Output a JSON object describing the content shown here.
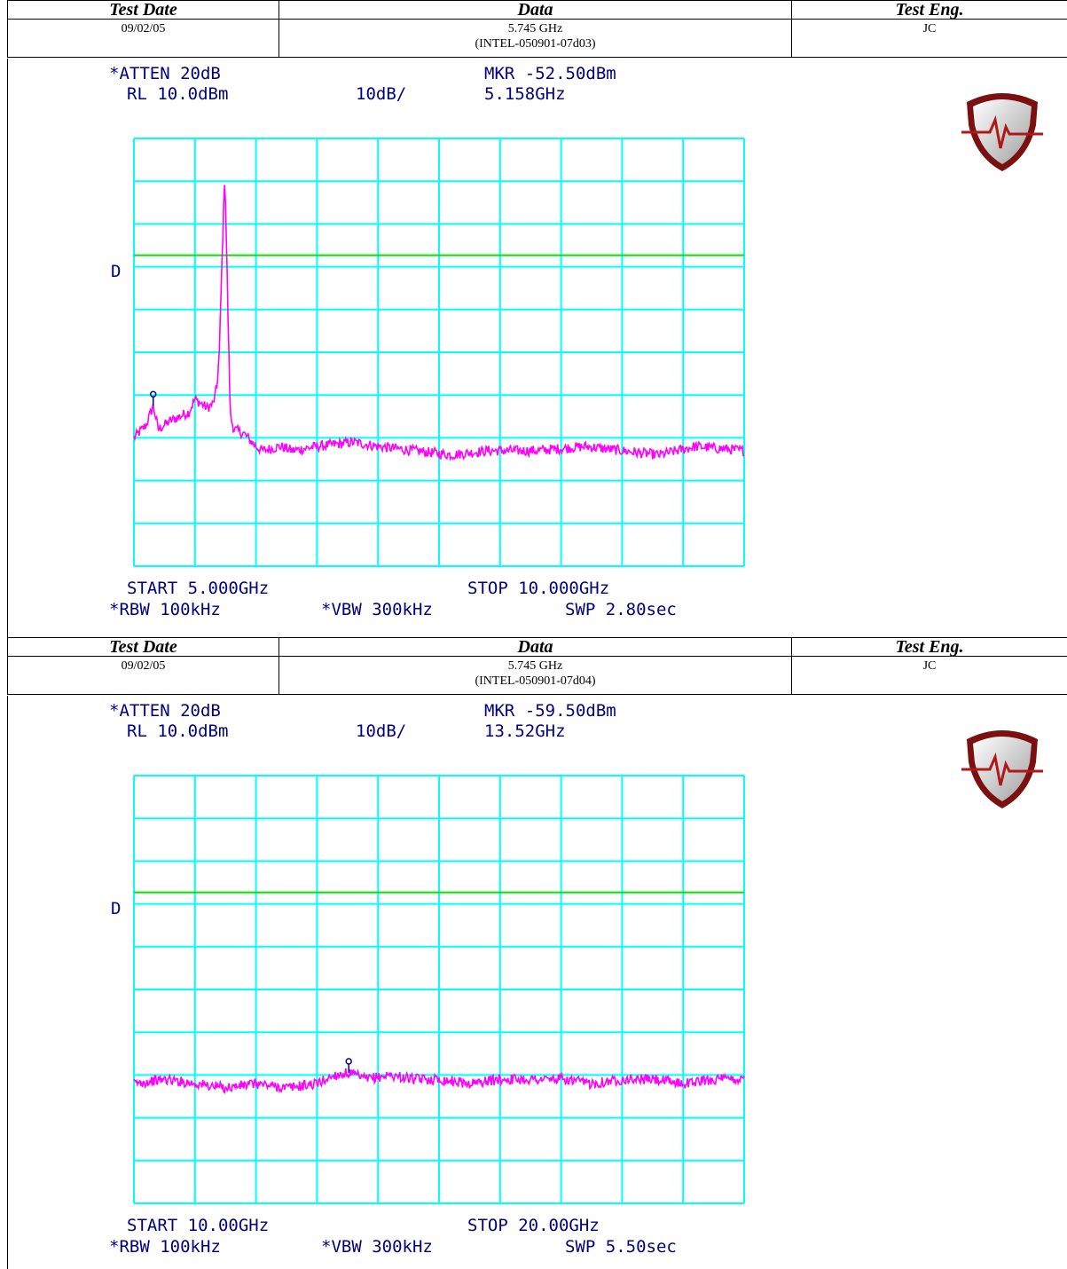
{
  "blocks": [
    {
      "header": {
        "col1": "Test Date",
        "col2": "Data",
        "col3": "Test Eng.",
        "date": "09/02/05",
        "data_line1": "5.745 GHz",
        "data_line2": "(INTEL-050901-07d03)",
        "engineer": "JC"
      },
      "analyzer": {
        "atten": "*ATTEN 20dB",
        "rl": "RL 10.0dBm",
        "scale": "10dB/",
        "mkr": "MKR -52.50dBm",
        "mkr_freq": "5.158GHz",
        "d_label": "D",
        "start": "START 5.000GHz",
        "stop": "STOP 10.000GHz",
        "rbw": "*RBW 100kHz",
        "vbw": "*VBW 300kHz",
        "swp": "SWP 2.80sec"
      },
      "chart_data": {
        "type": "line",
        "title": "",
        "xlabel": "",
        "ylabel": "",
        "x_unit": "GHz",
        "y_unit": "dBm",
        "xlim": [
          5.0,
          10.0
        ],
        "ylim": [
          -90,
          10
        ],
        "grid": true,
        "display_line_dbm": -17.3,
        "marker": {
          "x": 5.158,
          "y": -52.5
        },
        "x": [
          5.0,
          5.1,
          5.158,
          5.2,
          5.3,
          5.45,
          5.5,
          5.6,
          5.65,
          5.68,
          5.7,
          5.72,
          5.745,
          5.77,
          5.79,
          5.82,
          5.9,
          6.0,
          6.05,
          6.2,
          6.3,
          6.5,
          6.8,
          7.0,
          7.3,
          7.6,
          7.9,
          8.3,
          8.7,
          9.0,
          9.3,
          9.6,
          10.0
        ],
        "y": [
          -60,
          -57,
          -52.5,
          -58,
          -56,
          -54,
          -51,
          -53,
          -52,
          -48,
          -40,
          -20,
          2,
          -30,
          -55,
          -58,
          -59,
          -62,
          -63,
          -62,
          -63,
          -62,
          -61,
          -62,
          -63,
          -64,
          -63,
          -63,
          -62,
          -63,
          -64,
          -62,
          -63
        ],
        "series": [
          {
            "color": "#ff00ff"
          }
        ]
      }
    },
    {
      "header": {
        "col1": "Test Date",
        "col2": "Data",
        "col3": "Test Eng.",
        "date": "09/02/05",
        "data_line1": "5.745 GHz",
        "data_line2": "(INTEL-050901-07d04)",
        "engineer": "JC"
      },
      "analyzer": {
        "atten": "*ATTEN 20dB",
        "rl": "RL 10.0dBm",
        "scale": "10dB/",
        "mkr": "MKR -59.50dBm",
        "mkr_freq": "13.52GHz",
        "d_label": "D",
        "start": "START 10.00GHz",
        "stop": "STOP 20.00GHz",
        "rbw": "*RBW 100kHz",
        "vbw": "*VBW 300kHz",
        "swp": "SWP 5.50sec"
      },
      "chart_data": {
        "type": "line",
        "title": "",
        "xlabel": "",
        "ylabel": "",
        "x_unit": "GHz",
        "y_unit": "dBm",
        "xlim": [
          10.0,
          20.0
        ],
        "ylim": [
          -90,
          10
        ],
        "grid": true,
        "display_line_dbm": -17.3,
        "marker": {
          "x": 13.52,
          "y": -59.5
        },
        "x": [
          10.0,
          10.5,
          11.0,
          11.5,
          12.0,
          12.5,
          13.0,
          13.3,
          13.52,
          13.8,
          14.2,
          14.6,
          15.0,
          15.5,
          16.0,
          16.5,
          17.0,
          17.5,
          18.0,
          18.5,
          19.0,
          19.5,
          20.0
        ],
        "y": [
          -62,
          -61,
          -62,
          -63,
          -62,
          -63,
          -62,
          -60,
          -59.5,
          -61,
          -60,
          -61,
          -61,
          -62,
          -61,
          -61,
          -61,
          -62,
          -61,
          -61,
          -62,
          -61,
          -61
        ],
        "series": [
          {
            "color": "#ff00ff"
          }
        ]
      }
    }
  ],
  "colors": {
    "grid": "#00ffff",
    "trace": "#ff00ff",
    "display_line": "#00e600",
    "annotation": "#000080"
  },
  "logo_icon": "shield-waveform-logo"
}
